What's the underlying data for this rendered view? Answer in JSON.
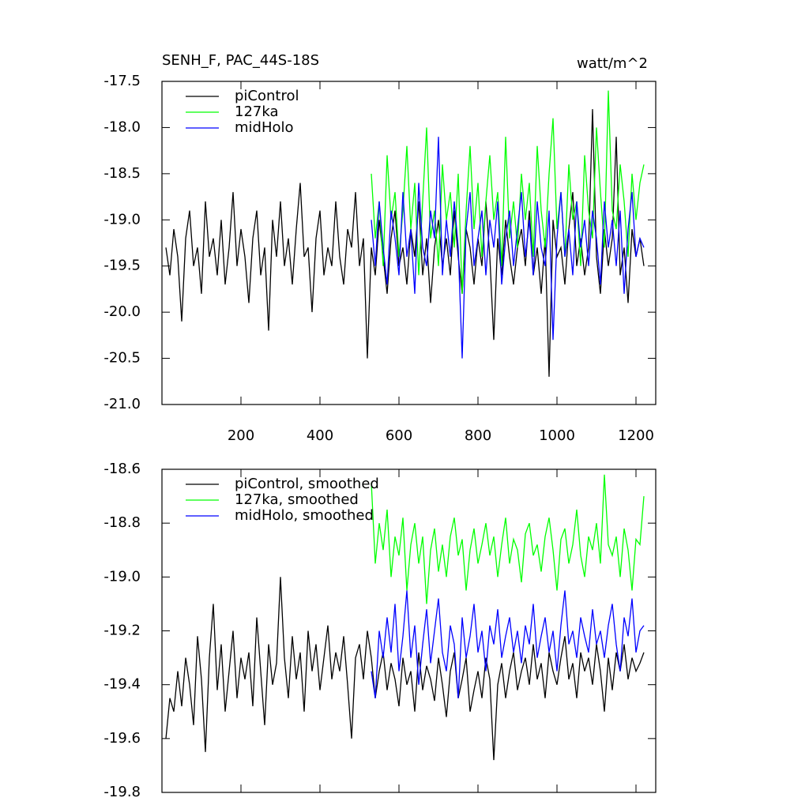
{
  "chart_data": [
    {
      "type": "line",
      "title": "SENH_F, PAC_44S-18S",
      "units": "watt/m^2",
      "x": [
        10,
        20,
        30,
        40,
        50,
        60,
        70,
        80,
        90,
        100,
        110,
        120,
        130,
        140,
        150,
        160,
        170,
        180,
        190,
        200,
        210,
        220,
        230,
        240,
        250,
        260,
        270,
        280,
        290,
        300,
        310,
        320,
        330,
        340,
        350,
        360,
        370,
        380,
        390,
        400,
        410,
        420,
        430,
        440,
        450,
        460,
        470,
        480,
        490,
        500,
        510,
        520,
        530,
        540,
        550,
        560,
        570,
        580,
        590,
        600,
        610,
        620,
        630,
        640,
        650,
        660,
        670,
        680,
        690,
        700,
        710,
        720,
        730,
        740,
        750,
        760,
        770,
        780,
        790,
        800,
        810,
        820,
        830,
        840,
        850,
        860,
        870,
        880,
        890,
        900,
        910,
        920,
        930,
        940,
        950,
        960,
        970,
        980,
        990,
        1000,
        1010,
        1020,
        1030,
        1040,
        1050,
        1060,
        1070,
        1080,
        1090,
        1100,
        1110,
        1120,
        1130,
        1140,
        1150,
        1160,
        1170,
        1180,
        1190,
        1200,
        1210,
        1220
      ],
      "series": [
        {
          "name": "piControl",
          "color": "#000000",
          "values": [
            -19.3,
            -19.6,
            -19.1,
            -19.4,
            -20.1,
            -19.2,
            -18.9,
            -19.5,
            -19.3,
            -19.8,
            -18.8,
            -19.4,
            -19.2,
            -19.6,
            -19.0,
            -19.7,
            -19.3,
            -18.7,
            -19.5,
            -19.1,
            -19.4,
            -19.9,
            -19.2,
            -18.9,
            -19.6,
            -19.3,
            -20.2,
            -19.0,
            -19.4,
            -18.8,
            -19.5,
            -19.2,
            -19.7,
            -19.1,
            -18.6,
            -19.4,
            -19.3,
            -20.0,
            -19.2,
            -18.9,
            -19.6,
            -19.3,
            -19.5,
            -18.8,
            -19.4,
            -19.7,
            -19.1,
            -19.3,
            -18.7,
            -19.5,
            -19.2,
            -20.5,
            -19.3,
            -19.6,
            -19.0,
            -19.4,
            -19.8,
            -19.2,
            -18.9,
            -19.5,
            -19.3,
            -19.7,
            -19.1,
            -19.4,
            -18.8,
            -19.6,
            -19.2,
            -19.9,
            -19.3,
            -19.0,
            -19.5,
            -19.2,
            -19.6,
            -18.9,
            -19.4,
            -19.8,
            -19.1,
            -19.3,
            -19.7,
            -19.2,
            -19.5,
            -18.8,
            -19.4,
            -20.3,
            -19.2,
            -19.6,
            -19.0,
            -19.4,
            -19.7,
            -19.3,
            -19.1,
            -19.5,
            -18.9,
            -19.6,
            -19.3,
            -19.8,
            -19.2,
            -20.7,
            -19.0,
            -19.4,
            -19.3,
            -19.7,
            -19.1,
            -18.7,
            -19.5,
            -19.2,
            -19.6,
            -19.3,
            -17.8,
            -19.4,
            -19.8,
            -19.1,
            -19.5,
            -19.2,
            -18.1,
            -19.6,
            -19.3,
            -19.9,
            -19.1,
            -19.4,
            -19.2,
            -19.5
          ]
        },
        {
          "name": "127ka",
          "color": "#00ff00",
          "values": [
            null,
            null,
            null,
            null,
            null,
            null,
            null,
            null,
            null,
            null,
            null,
            null,
            null,
            null,
            null,
            null,
            null,
            null,
            null,
            null,
            null,
            null,
            null,
            null,
            null,
            null,
            null,
            null,
            null,
            null,
            null,
            null,
            null,
            null,
            null,
            null,
            null,
            null,
            null,
            null,
            null,
            null,
            null,
            null,
            null,
            null,
            null,
            null,
            null,
            null,
            null,
            null,
            -18.5,
            -19.2,
            -18.8,
            -19.5,
            -18.3,
            -19.0,
            -18.7,
            -19.4,
            -18.9,
            -18.2,
            -19.1,
            -18.6,
            -19.6,
            -18.8,
            -18.0,
            -19.2,
            -18.9,
            -19.5,
            -18.4,
            -19.0,
            -18.7,
            -19.3,
            -18.5,
            -19.8,
            -18.9,
            -18.2,
            -19.1,
            -18.6,
            -19.4,
            -18.8,
            -18.3,
            -19.0,
            -18.7,
            -19.5,
            -18.1,
            -19.2,
            -18.8,
            -19.3,
            -18.5,
            -19.0,
            -18.6,
            -19.4,
            -18.2,
            -18.9,
            -19.3,
            -18.5,
            -17.9,
            -19.1,
            -18.7,
            -19.4,
            -18.4,
            -19.0,
            -18.8,
            -19.5,
            -18.3,
            -18.9,
            -19.2,
            -18.0,
            -18.7,
            -19.3,
            -17.6,
            -18.9,
            -19.1,
            -18.4,
            -18.8,
            -19.4,
            -18.5,
            -19.0,
            -18.6,
            -18.4
          ]
        },
        {
          "name": "midHolo",
          "color": "#0000ff",
          "values": [
            null,
            null,
            null,
            null,
            null,
            null,
            null,
            null,
            null,
            null,
            null,
            null,
            null,
            null,
            null,
            null,
            null,
            null,
            null,
            null,
            null,
            null,
            null,
            null,
            null,
            null,
            null,
            null,
            null,
            null,
            null,
            null,
            null,
            null,
            null,
            null,
            null,
            null,
            null,
            null,
            null,
            null,
            null,
            null,
            null,
            null,
            null,
            null,
            null,
            null,
            null,
            null,
            -19.0,
            -19.5,
            -18.8,
            -19.3,
            -19.7,
            -18.9,
            -19.2,
            -19.6,
            -18.7,
            -19.4,
            -19.1,
            -19.8,
            -18.6,
            -19.3,
            -19.5,
            -18.9,
            -19.2,
            -18.1,
            -19.6,
            -19.0,
            -19.4,
            -18.8,
            -19.3,
            -20.5,
            -19.1,
            -18.7,
            -19.5,
            -19.2,
            -18.9,
            -19.6,
            -19.0,
            -19.3,
            -18.8,
            -19.7,
            -19.2,
            -18.9,
            -19.5,
            -19.1,
            -18.7,
            -19.4,
            -19.0,
            -19.6,
            -18.8,
            -19.3,
            -19.5,
            -18.9,
            -20.3,
            -19.2,
            -18.7,
            -19.4,
            -19.1,
            -19.6,
            -18.8,
            -19.3,
            -19.0,
            -19.5,
            -18.9,
            -19.2,
            -19.7,
            -18.8,
            -19.3,
            -19.0,
            -19.5,
            -18.9,
            -19.8,
            -19.1,
            -18.7,
            -19.4,
            -19.2,
            -19.3
          ]
        }
      ],
      "xlim": [
        0,
        1250
      ],
      "xticks": [
        200,
        400,
        600,
        800,
        1000,
        1200
      ],
      "xticklabels": true,
      "ylim": [
        -21,
        -17.5
      ],
      "yticks": [
        -17.5,
        {
          "value": -18,
          "label": "-18.0"
        },
        -18.5,
        {
          "value": -19,
          "label": "-19.0"
        },
        -19.5,
        {
          "value": -20,
          "label": "-20.0"
        },
        -20.5,
        {
          "value": -21,
          "label": "-21.0"
        }
      ],
      "legend": "upper left"
    },
    {
      "type": "line",
      "x": [
        10,
        20,
        30,
        40,
        50,
        60,
        70,
        80,
        90,
        100,
        110,
        120,
        130,
        140,
        150,
        160,
        170,
        180,
        190,
        200,
        210,
        220,
        230,
        240,
        250,
        260,
        270,
        280,
        290,
        300,
        310,
        320,
        330,
        340,
        350,
        360,
        370,
        380,
        390,
        400,
        410,
        420,
        430,
        440,
        450,
        460,
        470,
        480,
        490,
        500,
        510,
        520,
        530,
        540,
        550,
        560,
        570,
        580,
        590,
        600,
        610,
        620,
        630,
        640,
        650,
        660,
        670,
        680,
        690,
        700,
        710,
        720,
        730,
        740,
        750,
        760,
        770,
        780,
        790,
        800,
        810,
        820,
        830,
        840,
        850,
        860,
        870,
        880,
        890,
        900,
        910,
        920,
        930,
        940,
        950,
        960,
        970,
        980,
        990,
        1000,
        1010,
        1020,
        1030,
        1040,
        1050,
        1060,
        1070,
        1080,
        1090,
        1100,
        1110,
        1120,
        1130,
        1140,
        1150,
        1160,
        1170,
        1180,
        1190,
        1200,
        1210,
        1220
      ],
      "series": [
        {
          "name": "piControl, smoothed",
          "color": "#000000",
          "values": [
            -19.6,
            -19.45,
            -19.5,
            -19.35,
            -19.48,
            -19.3,
            -19.4,
            -19.55,
            -19.22,
            -19.38,
            -19.65,
            -19.3,
            -19.1,
            -19.42,
            -19.25,
            -19.5,
            -19.35,
            -19.2,
            -19.45,
            -19.3,
            -19.38,
            -19.28,
            -19.48,
            -19.15,
            -19.35,
            -19.55,
            -19.25,
            -19.4,
            -19.32,
            -19.0,
            -19.3,
            -19.45,
            -19.22,
            -19.38,
            -19.28,
            -19.5,
            -19.2,
            -19.35,
            -19.25,
            -19.42,
            -19.3,
            -19.18,
            -19.38,
            -19.28,
            -19.35,
            -19.22,
            -19.4,
            -19.6,
            -19.3,
            -19.25,
            -19.38,
            -19.2,
            -19.3,
            -19.45,
            -19.35,
            -19.28,
            -19.42,
            -19.32,
            -19.38,
            -19.48,
            -19.3,
            -19.4,
            -19.35,
            -19.5,
            -19.28,
            -19.42,
            -19.33,
            -19.38,
            -19.46,
            -19.3,
            -19.4,
            -19.52,
            -19.35,
            -19.28,
            -19.45,
            -19.38,
            -19.3,
            -19.5,
            -19.42,
            -19.35,
            -19.45,
            -19.3,
            -19.38,
            -19.68,
            -19.4,
            -19.32,
            -19.45,
            -19.35,
            -19.28,
            -19.42,
            -19.35,
            -19.3,
            -19.4,
            -19.25,
            -19.38,
            -19.32,
            -19.45,
            -19.28,
            -19.35,
            -19.4,
            -19.3,
            -19.22,
            -19.38,
            -19.32,
            -19.45,
            -19.28,
            -19.35,
            -19.3,
            -19.4,
            -19.25,
            -19.35,
            -19.5,
            -19.3,
            -19.42,
            -19.28,
            -19.35,
            -19.25,
            -19.38,
            -19.3,
            -19.35,
            -19.32,
            -19.28
          ]
        },
        {
          "name": "127ka, smoothed",
          "color": "#00ff00",
          "values": [
            null,
            null,
            null,
            null,
            null,
            null,
            null,
            null,
            null,
            null,
            null,
            null,
            null,
            null,
            null,
            null,
            null,
            null,
            null,
            null,
            null,
            null,
            null,
            null,
            null,
            null,
            null,
            null,
            null,
            null,
            null,
            null,
            null,
            null,
            null,
            null,
            null,
            null,
            null,
            null,
            null,
            null,
            null,
            null,
            null,
            null,
            null,
            null,
            null,
            null,
            null,
            null,
            -18.65,
            -18.95,
            -18.8,
            -18.9,
            -18.75,
            -19.0,
            -18.85,
            -18.92,
            -18.78,
            -19.05,
            -18.88,
            -18.8,
            -18.95,
            -18.85,
            -19.1,
            -18.9,
            -18.82,
            -18.98,
            -18.88,
            -19.0,
            -18.85,
            -18.78,
            -18.92,
            -18.86,
            -19.05,
            -18.9,
            -18.82,
            -18.95,
            -18.88,
            -18.8,
            -18.92,
            -18.85,
            -19.0,
            -18.88,
            -18.78,
            -18.95,
            -18.86,
            -18.9,
            -19.02,
            -18.84,
            -18.8,
            -18.92,
            -18.88,
            -18.98,
            -18.85,
            -18.78,
            -18.9,
            -19.05,
            -18.86,
            -18.82,
            -18.95,
            -18.88,
            -18.75,
            -18.92,
            -19.0,
            -18.85,
            -18.9,
            -18.8,
            -18.95,
            -18.62,
            -18.88,
            -18.92,
            -18.85,
            -19.0,
            -18.82,
            -18.9,
            -19.05,
            -18.86,
            -18.88,
            -18.7
          ]
        },
        {
          "name": "midHolo, smoothed",
          "color": "#0000ff",
          "values": [
            null,
            null,
            null,
            null,
            null,
            null,
            null,
            null,
            null,
            null,
            null,
            null,
            null,
            null,
            null,
            null,
            null,
            null,
            null,
            null,
            null,
            null,
            null,
            null,
            null,
            null,
            null,
            null,
            null,
            null,
            null,
            null,
            null,
            null,
            null,
            null,
            null,
            null,
            null,
            null,
            null,
            null,
            null,
            null,
            null,
            null,
            null,
            null,
            null,
            null,
            null,
            null,
            -19.35,
            -19.45,
            -19.2,
            -19.3,
            -19.15,
            -19.28,
            -19.1,
            -19.35,
            -19.22,
            -19.05,
            -19.3,
            -19.18,
            -19.4,
            -19.25,
            -19.12,
            -19.32,
            -19.2,
            -19.08,
            -19.28,
            -19.35,
            -19.18,
            -19.25,
            -19.45,
            -19.15,
            -19.3,
            -19.22,
            -19.1,
            -19.28,
            -19.2,
            -19.35,
            -19.18,
            -19.25,
            -19.12,
            -19.3,
            -19.22,
            -19.15,
            -19.28,
            -19.2,
            -19.32,
            -19.18,
            -19.25,
            -19.1,
            -19.3,
            -19.22,
            -19.15,
            -19.28,
            -19.2,
            -19.35,
            -19.18,
            -19.05,
            -19.25,
            -19.2,
            -19.3,
            -19.15,
            -19.22,
            -19.28,
            -19.12,
            -19.25,
            -19.2,
            -19.3,
            -19.18,
            -19.1,
            -19.25,
            -19.35,
            -19.15,
            -19.22,
            -19.08,
            -19.28,
            -19.2,
            -19.18
          ]
        }
      ],
      "xlim": [
        0,
        1250
      ],
      "xticks": [
        200,
        400,
        600,
        800,
        1000,
        1200
      ],
      "xticklabels": false,
      "ylim": [
        -19.8,
        -18.6
      ],
      "yticks": [
        -18.6,
        -18.8,
        {
          "value": -19,
          "label": "-19.0"
        },
        -19.2,
        -19.4,
        -19.6,
        -19.8
      ],
      "legend": "upper left"
    }
  ]
}
